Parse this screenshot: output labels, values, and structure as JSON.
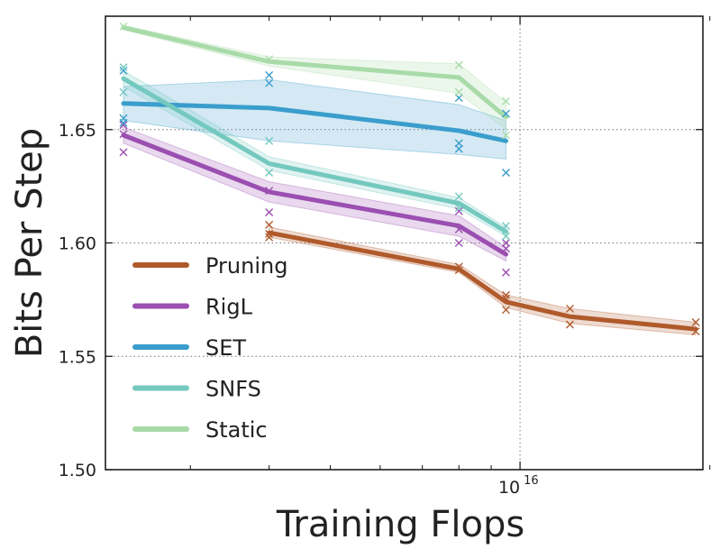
{
  "chart_data": {
    "type": "line",
    "title": "",
    "xlabel": "Training Flops",
    "ylabel": "Bits Per Step",
    "xscale": "log",
    "xlim": [
      2200000000000000.0,
      1.95e+16
    ],
    "ylim": [
      1.5,
      1.7
    ],
    "yticks": [
      1.5,
      1.55,
      1.6,
      1.65
    ],
    "ytick_labels": [
      "1.50",
      "1.55",
      "1.60",
      "1.65"
    ],
    "xtick_label": {
      "base": "10",
      "exponent": "16",
      "value": 1e+16
    },
    "x_minor_ticks": [
      3000000000000000.0,
      4000000000000000.0,
      5000000000000000.0,
      6000000000000000.0,
      7000000000000000.0,
      8000000000000000.0,
      9000000000000000.0,
      2e+16
    ],
    "grid": true,
    "legend_position": "lower-left",
    "series": [
      {
        "name": "Pruning",
        "color": "#b05a2c",
        "x": [
          4000000000000000.0,
          8000000000000000.0,
          9500000000000000.0,
          1.2e+16,
          1.9e+16
        ],
        "mean": [
          1.6045,
          1.5885,
          1.574,
          1.5675,
          1.562
        ],
        "low": [
          1.6025,
          1.587,
          1.5715,
          1.5645,
          1.5595
        ],
        "high": [
          1.607,
          1.5905,
          1.577,
          1.571,
          1.565
        ],
        "samples": [
          [
            4000000000000000.0,
            1.608
          ],
          [
            4000000000000000.0,
            1.604
          ],
          [
            4000000000000000.0,
            1.6025
          ],
          [
            8000000000000000.0,
            1.5895
          ],
          [
            8000000000000000.0,
            1.588
          ],
          [
            9500000000000000.0,
            1.577
          ],
          [
            9500000000000000.0,
            1.5755
          ],
          [
            9500000000000000.0,
            1.5705
          ],
          [
            1.2e+16,
            1.571
          ],
          [
            1.2e+16,
            1.564
          ],
          [
            1.9e+16,
            1.565
          ],
          [
            1.9e+16,
            1.561
          ]
        ]
      },
      {
        "name": "RigL",
        "color": "#9b4fb0",
        "x": [
          2350000000000000.0,
          4000000000000000.0,
          8000000000000000.0,
          9500000000000000.0
        ],
        "mean": [
          1.6475,
          1.6225,
          1.6075,
          1.595
        ],
        "low": [
          1.644,
          1.618,
          1.603,
          1.592
        ],
        "high": [
          1.651,
          1.627,
          1.612,
          1.598
        ],
        "samples": [
          [
            2350000000000000.0,
            1.652
          ],
          [
            2350000000000000.0,
            1.648
          ],
          [
            2350000000000000.0,
            1.64
          ],
          [
            4000000000000000.0,
            1.623
          ],
          [
            4000000000000000.0,
            1.6135
          ],
          [
            8000000000000000.0,
            1.614
          ],
          [
            8000000000000000.0,
            1.606
          ],
          [
            8000000000000000.0,
            1.6
          ],
          [
            9500000000000000.0,
            1.6
          ],
          [
            9500000000000000.0,
            1.5975
          ],
          [
            9500000000000000.0,
            1.587
          ]
        ]
      },
      {
        "name": "SET",
        "color": "#3a9dcc",
        "x": [
          2350000000000000.0,
          4000000000000000.0,
          8000000000000000.0,
          9500000000000000.0
        ],
        "mean": [
          1.6615,
          1.6595,
          1.6495,
          1.645
        ],
        "low": [
          1.654,
          1.645,
          1.639,
          1.637
        ],
        "high": [
          1.669,
          1.672,
          1.661,
          1.654
        ],
        "samples": [
          [
            2350000000000000.0,
            1.676
          ],
          [
            2350000000000000.0,
            1.655
          ],
          [
            2350000000000000.0,
            1.653
          ],
          [
            4000000000000000.0,
            1.674
          ],
          [
            4000000000000000.0,
            1.6705
          ],
          [
            8000000000000000.0,
            1.664
          ],
          [
            8000000000000000.0,
            1.644
          ],
          [
            8000000000000000.0,
            1.6415
          ],
          [
            9500000000000000.0,
            1.657
          ],
          [
            9500000000000000.0,
            1.631
          ]
        ]
      },
      {
        "name": "SNFS",
        "color": "#74c9bf",
        "x": [
          2350000000000000.0,
          4000000000000000.0,
          8000000000000000.0,
          9500000000000000.0
        ],
        "mean": [
          1.6725,
          1.635,
          1.6175,
          1.605
        ],
        "low": [
          1.669,
          1.632,
          1.615,
          1.603
        ],
        "high": [
          1.676,
          1.638,
          1.62,
          1.607
        ],
        "samples": [
          [
            2350000000000000.0,
            1.6775
          ],
          [
            2350000000000000.0,
            1.6665
          ],
          [
            4000000000000000.0,
            1.645
          ],
          [
            4000000000000000.0,
            1.631
          ],
          [
            8000000000000000.0,
            1.6205
          ],
          [
            8000000000000000.0,
            1.6155
          ],
          [
            9500000000000000.0,
            1.6075
          ],
          [
            9500000000000000.0,
            1.603
          ]
        ]
      },
      {
        "name": "Static",
        "color": "#a8dba8",
        "x": [
          2350000000000000.0,
          4000000000000000.0,
          8000000000000000.0,
          9500000000000000.0
        ],
        "mean": [
          1.695,
          1.68,
          1.673,
          1.6555
        ],
        "low": [
          1.694,
          1.678,
          1.666,
          1.65
        ],
        "high": [
          1.696,
          1.682,
          1.679,
          1.662
        ],
        "samples": [
          [
            2350000000000000.0,
            1.6955
          ],
          [
            4000000000000000.0,
            1.681
          ],
          [
            8000000000000000.0,
            1.6785
          ],
          [
            8000000000000000.0,
            1.6665
          ],
          [
            9500000000000000.0,
            1.6625
          ],
          [
            9500000000000000.0,
            1.6475
          ]
        ]
      }
    ]
  }
}
